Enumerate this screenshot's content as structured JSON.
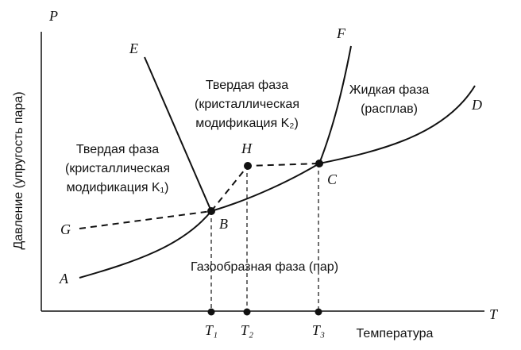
{
  "axes": {
    "y_symbol": "P",
    "x_symbol": "T",
    "y_label": "Давление (упругость пара)",
    "x_label": "Температура"
  },
  "points": {
    "A": "A",
    "B": "B",
    "C": "C",
    "D": "D",
    "E": "E",
    "F": "F",
    "G": "G",
    "H": "H"
  },
  "temperatures": [
    "T₁",
    "T₂",
    "T₃"
  ],
  "regions": {
    "solid_k2": [
      "Твердая фаза",
      "(кристаллическая",
      "модификация K₂)"
    ],
    "solid_k1": [
      "Твердая фаза",
      "(кристаллическая",
      "модификация K₁)"
    ],
    "liquid": [
      "Жидкая фаза",
      "(расплав)"
    ],
    "gas": "Газообразная фаза (пар)"
  }
}
